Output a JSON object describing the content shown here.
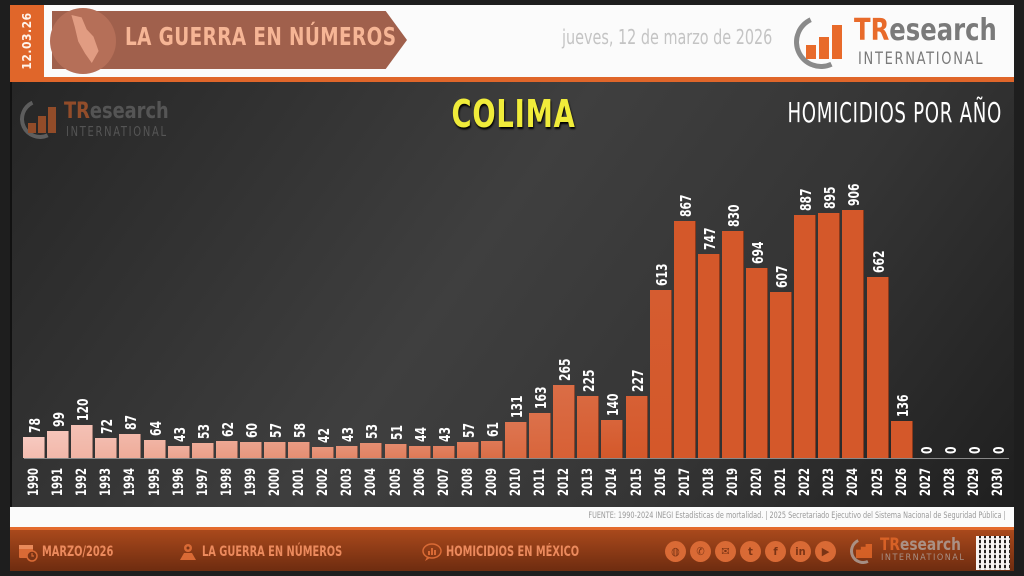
{
  "header": {
    "date_short": "12.03.26",
    "banner_title": "LA GUERRA EN NÚMEROS",
    "date_long": "jueves, 12 de marzo de 2026",
    "logo": {
      "brand_tr": "TR",
      "brand_rest": "esearch",
      "sub": "INTERNATIONAL"
    }
  },
  "panel": {
    "state_title": "COLIMA",
    "subtitle": "HOMICIDIOS POR AÑO",
    "watermark": {
      "brand_tr": "TR",
      "brand_rest": "esearch",
      "sub": "INTERNATIONAL"
    }
  },
  "source": "FUENTE: 1990-2024 INEGI Estadísticas de mortalidad. | 2025 Secretariado Ejecutivo del Sistema Nacional de Seguridad Pública |",
  "footer": {
    "items": [
      {
        "icon": "calendar-clock-icon",
        "label": "MARZO/2026"
      },
      {
        "icon": "map-pin-icon",
        "label": "LA GUERRA EN NÚMEROS"
      },
      {
        "icon": "chat-chart-icon",
        "label": "HOMICIDIOS EN MÉXICO"
      }
    ],
    "social": [
      {
        "icon": "globe-icon",
        "glyph": "◍"
      },
      {
        "icon": "phone-icon",
        "glyph": "✆"
      },
      {
        "icon": "mail-icon",
        "glyph": "✉"
      },
      {
        "icon": "twitter-icon",
        "glyph": "t"
      },
      {
        "icon": "facebook-icon",
        "glyph": "f"
      },
      {
        "icon": "linkedin-icon",
        "glyph": "in"
      },
      {
        "icon": "youtube-icon",
        "glyph": "▶"
      }
    ],
    "logo": {
      "brand_tr": "TR",
      "brand_rest": "esearch",
      "sub": "INTERNATIONAL"
    }
  },
  "colors": {
    "accent_orange": "#e0662a",
    "title_yellow": "#f0ec3a",
    "bar_light": "#f7c9c0",
    "bar_dark": "#d4582a"
  },
  "chart_data": {
    "type": "bar",
    "title": "COLIMA",
    "subtitle": "HOMICIDIOS POR AÑO",
    "xlabel": "",
    "ylabel": "",
    "grid": false,
    "legend": null,
    "categories": [
      "1990",
      "1991",
      "1992",
      "1993",
      "1994",
      "1995",
      "1996",
      "1997",
      "1998",
      "1999",
      "2000",
      "2001",
      "2002",
      "2003",
      "2004",
      "2005",
      "2006",
      "2007",
      "2008",
      "2009",
      "2010",
      "2011",
      "2012",
      "2013",
      "2014",
      "2015",
      "2016",
      "2017",
      "2018",
      "2019",
      "2020",
      "2021",
      "2022",
      "2023",
      "2024",
      "2025",
      "2026",
      "2027",
      "2028",
      "2029",
      "2030"
    ],
    "values": [
      78,
      99,
      120,
      72,
      87,
      64,
      43,
      53,
      62,
      60,
      57,
      58,
      42,
      43,
      53,
      51,
      44,
      43,
      57,
      61,
      131,
      163,
      265,
      225,
      140,
      227,
      613,
      867,
      747,
      830,
      694,
      607,
      887,
      895,
      906,
      662,
      136,
      0,
      0,
      0,
      0
    ],
    "ylim": [
      0,
      950
    ],
    "source": "FUENTE: 1990-2024 INEGI Estadísticas de mortalidad. | 2025 Secretariado Ejecutivo del Sistema Nacional de Seguridad Pública |"
  }
}
